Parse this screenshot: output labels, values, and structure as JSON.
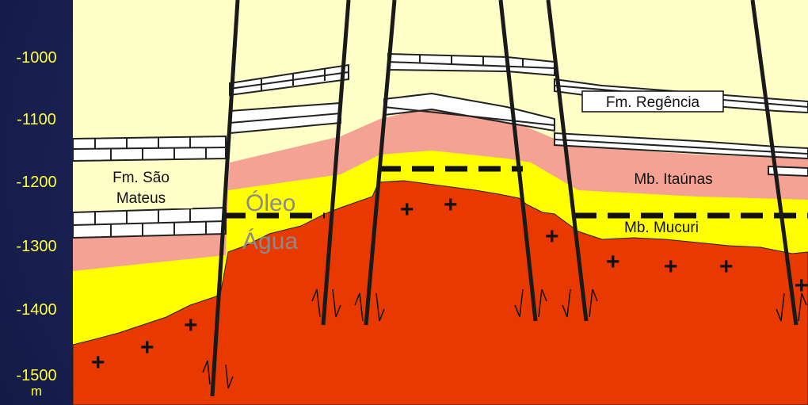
{
  "depth_axis": {
    "labels": [
      "-1000",
      "-1100",
      "-1200",
      "-1300",
      "-1400",
      "-1500"
    ],
    "unit": "m"
  },
  "section": {
    "formations": {
      "regencia": "Fm. Regência",
      "sao_mateus_line1": "Fm. São",
      "sao_mateus_line2": "Mateus",
      "itaunas": "Mb. Itaúnas",
      "mucuri": "Mb. Mucuri"
    },
    "contacts": {
      "oil": "Óleo",
      "water": "Água"
    }
  },
  "colors": {
    "background": "#1c2458",
    "axis_text": "#ffff33",
    "sky": "#ffffc8",
    "limestone": "#ffffff",
    "pink_layer": "#f4a294",
    "yellow_layer": "#ffff00",
    "basement": "#e83a00",
    "fault": "#1a1a1a"
  }
}
